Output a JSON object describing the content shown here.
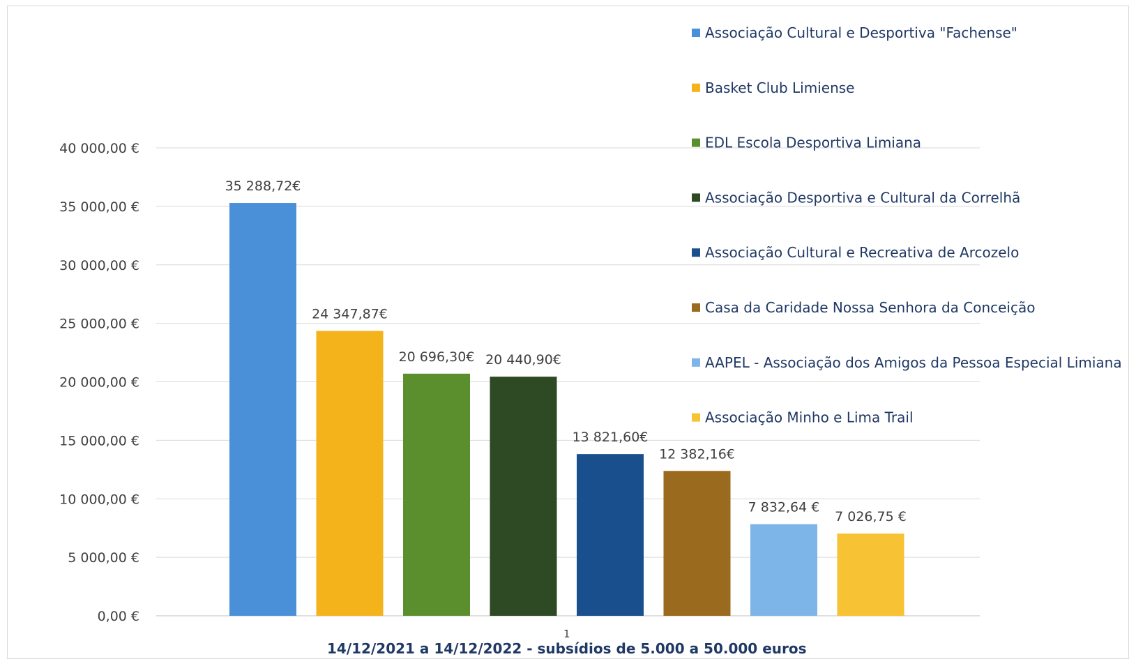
{
  "chart_data": {
    "type": "bar",
    "categories": [
      "1"
    ],
    "xlabel": "14/12/2021 a 14/12/2022 - subsídios de 5.000 a 50.000 euros",
    "ylabel": "",
    "ylim": [
      0,
      40000
    ],
    "y_ticks": [
      "0,00 €",
      "5 000,00 €",
      "10 000,00 €",
      "15 000,00 €",
      "20 000,00 €",
      "25 000,00 €",
      "30 000,00 €",
      "35 000,00 €",
      "40 000,00 €"
    ],
    "grid": true,
    "legend_position": "right",
    "series": [
      {
        "name": "Associação Cultural e Desportiva \"Fachense\"",
        "values": [
          35288.72
        ],
        "label": "35 288,72€",
        "color": "#4a90d9"
      },
      {
        "name": "Basket Club Limiense",
        "values": [
          24347.87
        ],
        "label": "24 347,87€",
        "color": "#f5b31b"
      },
      {
        "name": "EDL Escola Desportiva Limiana",
        "values": [
          20696.3
        ],
        "label": "20 696,30€",
        "color": "#5b8f2e"
      },
      {
        "name": "Associação Desportiva e Cultural da Correlhã",
        "values": [
          20440.9
        ],
        "label": "20 440,90€",
        "color": "#2e4a24"
      },
      {
        "name": "Associação Cultural e Recreativa de Arcozelo",
        "values": [
          13821.6
        ],
        "label": "13 821,60€",
        "color": "#184f8c"
      },
      {
        "name": "Casa da Caridade Nossa Senhora da Conceição",
        "values": [
          12382.16
        ],
        "label": "12 382,16€",
        "color": "#9a6a1e"
      },
      {
        "name": "AAPEL - Associação dos Amigos da Pessoa Especial Limiana",
        "values": [
          7832.64
        ],
        "label": "7 832,64 €",
        "color": "#7db5e8"
      },
      {
        "name": "Associação Minho e Lima Trail",
        "values": [
          7026.75
        ],
        "label": "7 026,75 €",
        "color": "#f7c233"
      }
    ]
  }
}
